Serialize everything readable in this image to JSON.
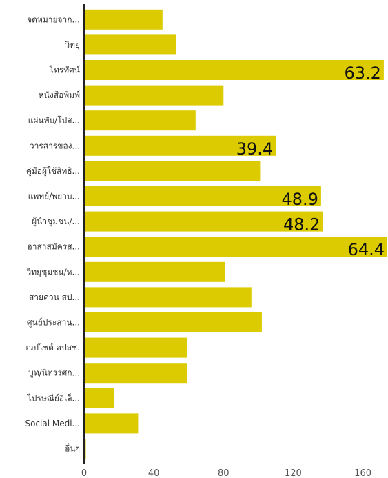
{
  "colors": {
    "bar": "#dccb00",
    "axis": "#222222",
    "background": "#ffffff"
  },
  "chart_data": {
    "type": "bar",
    "orientation": "horizontal",
    "categories": [
      "จดหมายจาก...",
      "วิทยุ",
      "โทรทัศน์",
      "หนังสือพิมพ์",
      "แผ่นพับ/โปส...",
      "วารสารของ...",
      "คู่มือผู้ใช้สิทธิ...",
      "แพทย์/พยาบ...",
      "ผู้นำชุมชน/...",
      "อาสาสมัครส...",
      "วิทยุชุมชน/ห...",
      "สายด่วน สป...",
      "ศูนย์ประสาน...",
      "เวปไซต์ สปสช.",
      "บูท/นิทรรศก...",
      "ไปรษณีย์อิเล็...",
      "Social Medi...",
      "อื่นๆ"
    ],
    "values": [
      45,
      53,
      172,
      80,
      64,
      110,
      101,
      136,
      137,
      174,
      81,
      96,
      102,
      59,
      59,
      17,
      31,
      1
    ],
    "data_labels": [
      "",
      "",
      "63.2",
      "",
      "",
      "39.4",
      "",
      "48.9",
      "48.2",
      "64.4",
      "",
      "",
      "",
      "",
      "",
      "",
      "",
      ""
    ],
    "xlim": [
      0,
      174
    ],
    "xticks": [
      0,
      40,
      80,
      120,
      160
    ],
    "title": "",
    "xlabel": "",
    "ylabel": "",
    "grid": false,
    "legend": "none"
  }
}
